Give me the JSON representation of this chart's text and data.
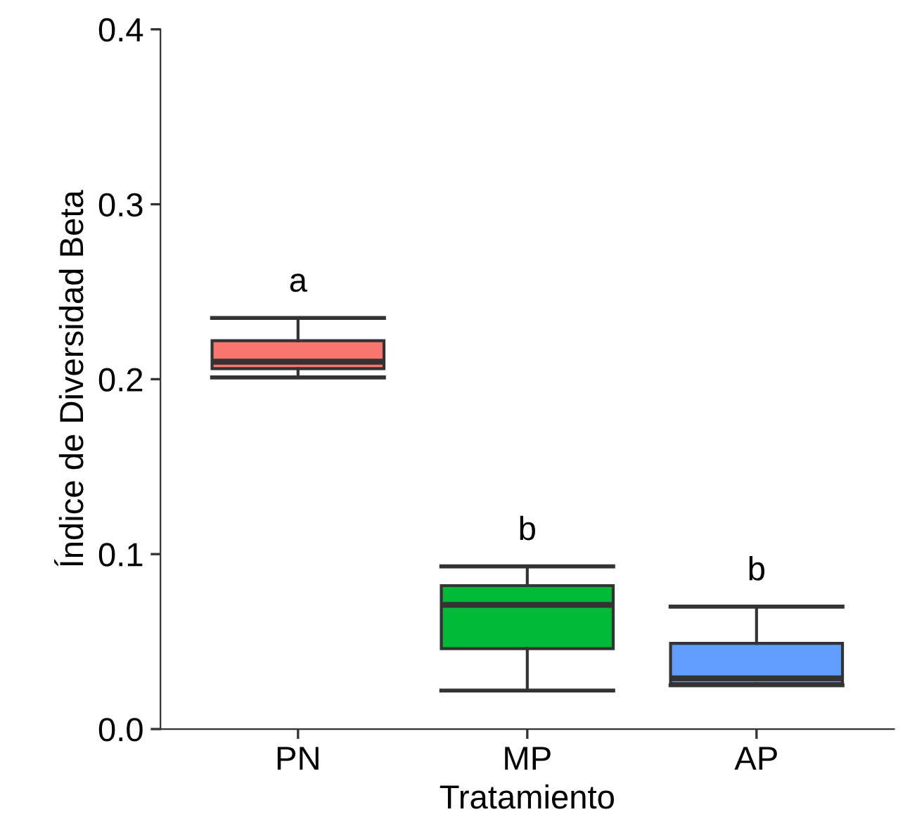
{
  "chart_data": {
    "type": "box",
    "xlabel": "Tratamiento",
    "ylabel": "Índice de Diversidad Beta",
    "categories": [
      "PN",
      "MP",
      "AP"
    ],
    "colors": [
      "#f8766d",
      "#00ba38",
      "#619cff"
    ],
    "boxes": [
      {
        "low": 0.201,
        "q1": 0.206,
        "median": 0.21,
        "q3": 0.222,
        "high": 0.235
      },
      {
        "low": 0.022,
        "q1": 0.046,
        "median": 0.071,
        "q3": 0.082,
        "high": 0.093
      },
      {
        "low": 0.025,
        "q1": 0.026,
        "median": 0.029,
        "q3": 0.049,
        "high": 0.07
      }
    ],
    "ylim": [
      0,
      0.4
    ],
    "yticks": [
      {
        "value": 0,
        "label": "0.0"
      },
      {
        "value": 0.1,
        "label": "0.1"
      },
      {
        "value": 0.2,
        "label": "0.2"
      },
      {
        "value": 0.3,
        "label": "0.3"
      },
      {
        "value": 0.4,
        "label": "0.4"
      }
    ],
    "annotations": [
      "a",
      "b",
      "b"
    ],
    "grid": false,
    "legend": false
  }
}
